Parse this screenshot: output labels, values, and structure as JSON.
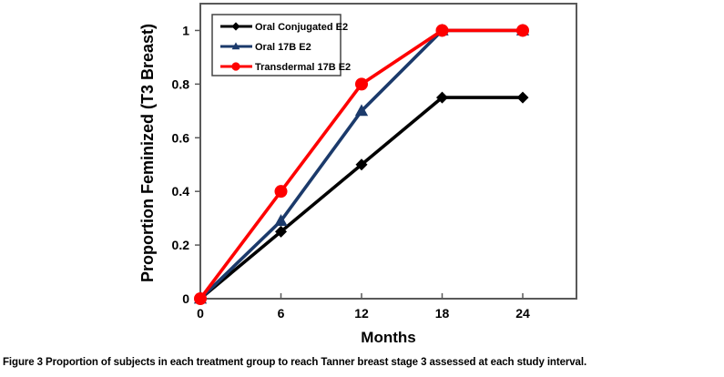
{
  "figure": {
    "caption_label": "Figure 3",
    "caption_text": "Proportion of subjects in each treatment group to reach Tanner breast stage 3 assessed at each study interval."
  },
  "chart_data": {
    "type": "line",
    "title": "",
    "xlabel": "Months",
    "ylabel": "Proportion Feminized (T3 Breast)",
    "x": [
      0,
      6,
      12,
      18,
      24
    ],
    "xticks": [
      "0",
      "6",
      "12",
      "18",
      "24"
    ],
    "yticks": [
      "0",
      "0.2",
      "0.4",
      "0.6",
      "0.8",
      "1"
    ],
    "ytick_values": [
      0,
      0.2,
      0.4,
      0.6,
      0.8,
      1
    ],
    "xlim": [
      0,
      28
    ],
    "ylim": [
      0,
      1.1
    ],
    "grid": false,
    "legend_position": "top-left-inside",
    "frame_color": "#595959",
    "series": [
      {
        "name": "Oral Conjugated E2",
        "color": "#000000",
        "marker": "diamond",
        "values": [
          0,
          0.25,
          0.5,
          0.75,
          0.75
        ]
      },
      {
        "name": "Oral 17B E2",
        "color": "#1B3A6B",
        "marker": "triangle",
        "values": [
          0,
          0.29,
          0.7,
          1.0,
          1.0
        ]
      },
      {
        "name": "Transdermal 17B E2",
        "color": "#FE0000",
        "marker": "circle",
        "values": [
          0,
          0.4,
          0.8,
          1.0,
          1.0
        ]
      }
    ]
  }
}
